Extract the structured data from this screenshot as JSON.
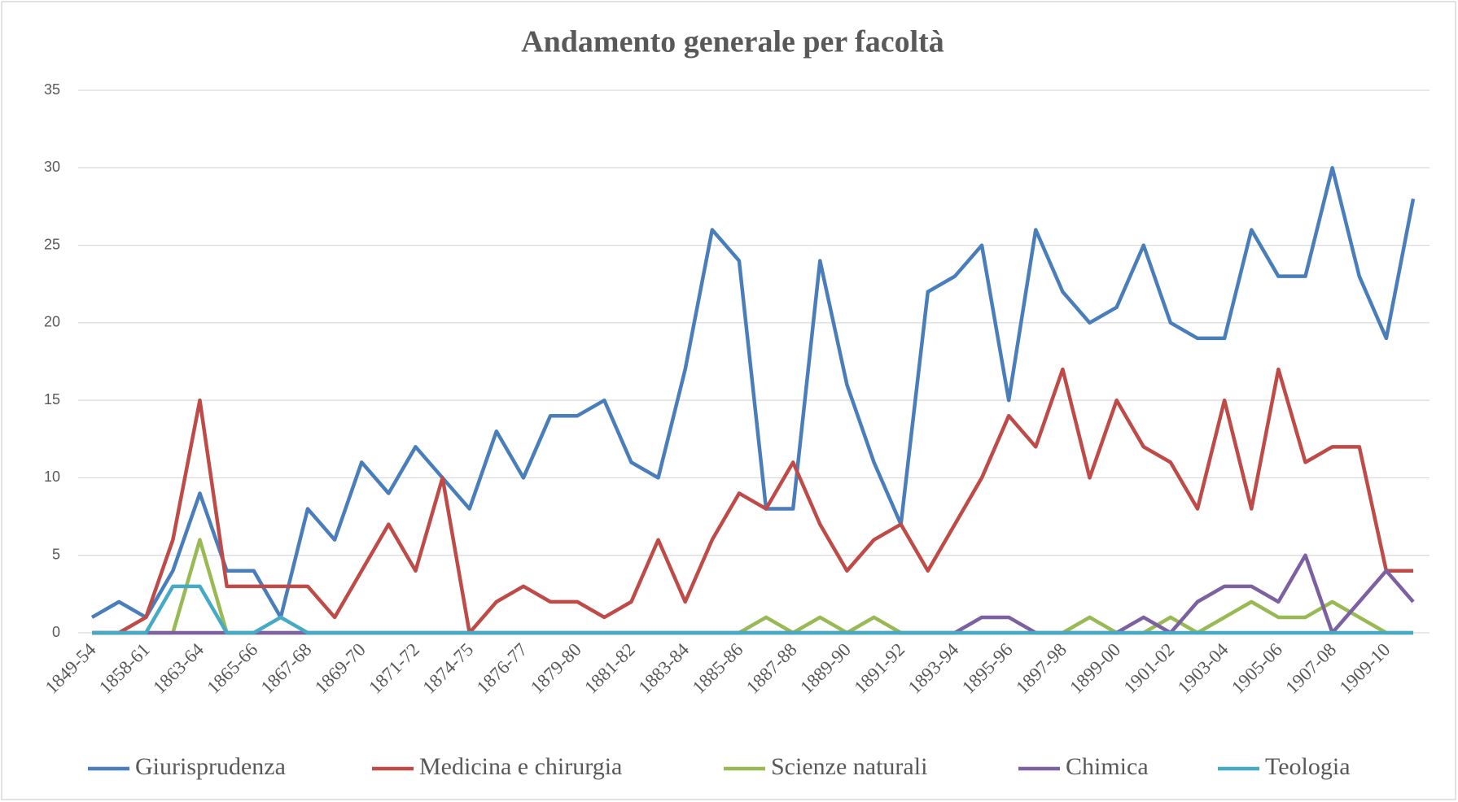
{
  "chart_data": {
    "type": "line",
    "title": "Andamento generale per facoltà",
    "categories": [
      "1849-54",
      null,
      "1858-61",
      null,
      "1863-64",
      null,
      "1865-66",
      null,
      "1867-68",
      null,
      "1869-70",
      null,
      "1871-72",
      null,
      "1874-75",
      null,
      "1876-77",
      null,
      "1879-80",
      null,
      "1881-82",
      null,
      "1883-84",
      null,
      "1885-86",
      null,
      "1887-88",
      null,
      "1889-90",
      null,
      "1891-92",
      null,
      "1893-94",
      null,
      "1895-96",
      null,
      "1897-98",
      null,
      "1899-00",
      null,
      "1901-02",
      null,
      "1903-04",
      null,
      "1905-06",
      null,
      "1907-08",
      null,
      "1909-10",
      null
    ],
    "series": [
      {
        "name": "Giurisprudenza",
        "color": "#4a7ebb",
        "values": [
          1,
          2,
          1,
          4,
          9,
          4,
          4,
          1,
          8,
          6,
          11,
          9,
          12,
          10,
          8,
          13,
          10,
          14,
          14,
          15,
          11,
          10,
          17,
          26,
          24,
          8,
          8,
          24,
          16,
          11,
          7,
          22,
          23,
          25,
          15,
          26,
          22,
          20,
          21,
          25,
          20,
          19,
          19,
          26,
          23,
          23,
          30,
          23,
          19,
          28
        ]
      },
      {
        "name": "Medicina e chirurgia",
        "color": "#be4b48",
        "values": [
          0,
          0,
          1,
          6,
          15,
          3,
          3,
          3,
          3,
          1,
          4,
          7,
          4,
          10,
          0,
          2,
          3,
          2,
          2,
          1,
          2,
          6,
          2,
          6,
          9,
          8,
          11,
          7,
          4,
          6,
          7,
          4,
          7,
          10,
          14,
          12,
          17,
          10,
          15,
          12,
          11,
          8,
          15,
          8,
          17,
          11,
          12,
          12,
          4,
          4
        ]
      },
      {
        "name": "Scienze naturali",
        "color": "#98b954",
        "values": [
          0,
          0,
          0,
          0,
          6,
          0,
          0,
          0,
          0,
          0,
          0,
          0,
          0,
          0,
          0,
          0,
          0,
          0,
          0,
          0,
          0,
          0,
          0,
          0,
          0,
          1,
          0,
          1,
          0,
          1,
          0,
          0,
          0,
          0,
          0,
          0,
          0,
          1,
          0,
          0,
          1,
          0,
          1,
          2,
          1,
          1,
          2,
          1,
          0,
          0
        ]
      },
      {
        "name": "Chimica",
        "color": "#7d60a0",
        "values": [
          0,
          0,
          0,
          0,
          0,
          0,
          0,
          0,
          0,
          0,
          0,
          0,
          0,
          0,
          0,
          0,
          0,
          0,
          0,
          0,
          0,
          0,
          0,
          0,
          0,
          0,
          0,
          0,
          0,
          0,
          0,
          0,
          0,
          1,
          1,
          0,
          0,
          0,
          0,
          1,
          0,
          2,
          3,
          3,
          2,
          5,
          0,
          2,
          4,
          2
        ]
      },
      {
        "name": "Teologia",
        "color": "#46aac5",
        "values": [
          0,
          0,
          0,
          3,
          3,
          0,
          0,
          1,
          0,
          0,
          0,
          0,
          0,
          0,
          0,
          0,
          0,
          0,
          0,
          0,
          0,
          0,
          0,
          0,
          0,
          0,
          0,
          0,
          0,
          0,
          0,
          0,
          0,
          0,
          0,
          0,
          0,
          0,
          0,
          0,
          0,
          0,
          0,
          0,
          0,
          0,
          0,
          0,
          0,
          0
        ]
      }
    ],
    "ylim": [
      0,
      35
    ],
    "yticks": [
      0,
      5,
      10,
      15,
      20,
      25,
      30,
      35
    ],
    "grid": true,
    "legend": "bottom"
  }
}
